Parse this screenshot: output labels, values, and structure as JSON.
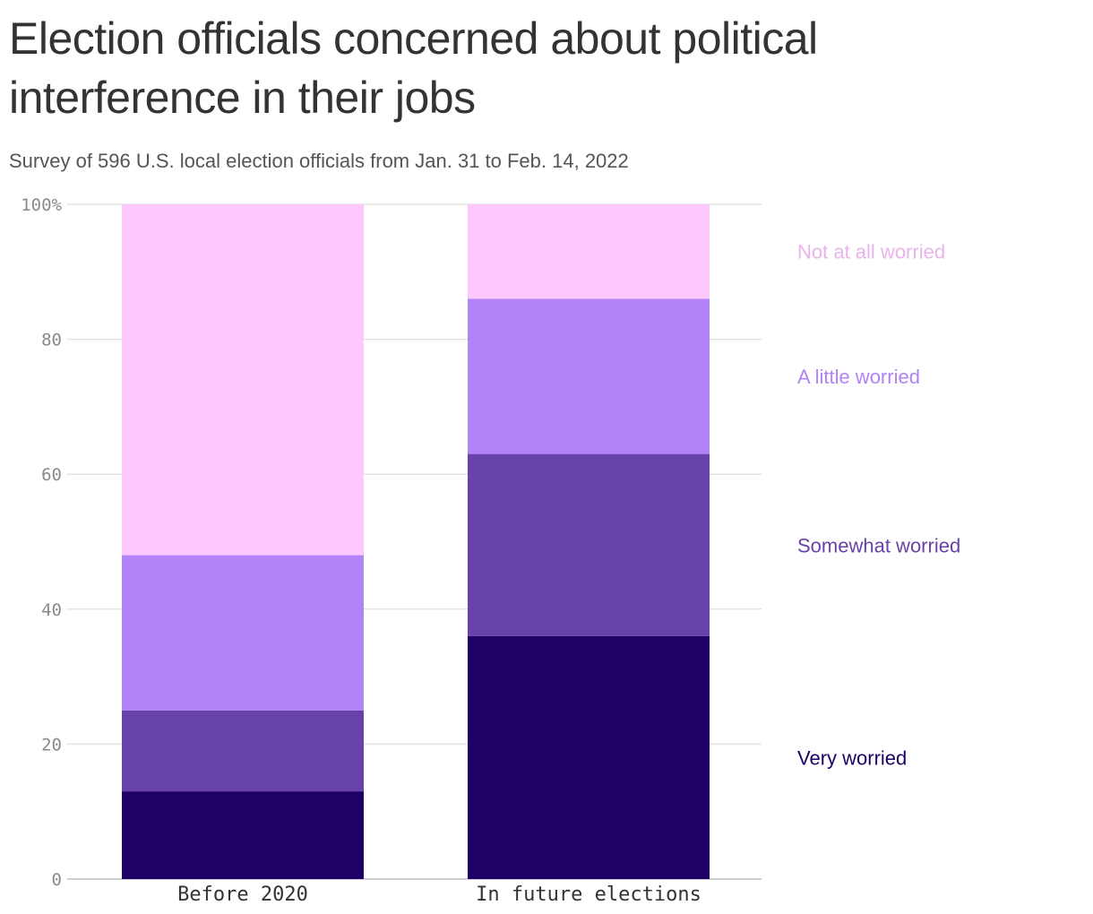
{
  "title": "Election officials concerned about political interference in their jobs",
  "subtitle": "Survey of 596 U.S. local election officials from Jan. 31 to Feb. 14, 2022",
  "chart_data": {
    "type": "bar",
    "stacked": true,
    "categories": [
      "Before 2020",
      "In future elections"
    ],
    "series": [
      {
        "name": "Very worried",
        "values": [
          13,
          36
        ],
        "color": "#1f0066"
      },
      {
        "name": "Somewhat worried",
        "values": [
          12,
          27
        ],
        "color": "#6842ab"
      },
      {
        "name": "A little worried",
        "values": [
          23,
          23
        ],
        "color": "#b183f7"
      },
      {
        "name": "Not at all worried",
        "values": [
          52,
          14
        ],
        "color": "#fdc9fd"
      }
    ],
    "legend_colors": {
      "Very worried": "#1f0066",
      "Somewhat worried": "#6842ab",
      "A little worried": "#b183f7",
      "Not at all worried": "#e9b3ec"
    },
    "ylim": [
      0,
      100
    ],
    "yticks": [
      0,
      20,
      40,
      60,
      80,
      100
    ],
    "ytick_labels": [
      "0",
      "20",
      "40",
      "60",
      "80",
      "100%"
    ],
    "grid": true,
    "legend_placement": "right"
  }
}
